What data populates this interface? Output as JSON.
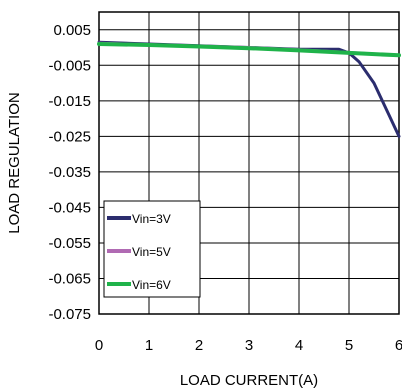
{
  "chart_data": {
    "type": "line",
    "title": "",
    "xlabel": "LOAD CURRENT(A)",
    "ylabel": "LOAD REGULATION",
    "xlim": [
      0,
      6
    ],
    "ylim": [
      -0.075,
      0.01
    ],
    "xticks": [
      0,
      1,
      2,
      3,
      4,
      5,
      6
    ],
    "yticks": [
      0.005,
      -0.005,
      -0.015,
      -0.025,
      -0.035,
      -0.045,
      -0.055,
      -0.065,
      -0.075
    ],
    "xtick_labels": [
      "0",
      "1",
      "2",
      "3",
      "4",
      "5",
      "6"
    ],
    "ytick_labels": [
      "0.005",
      "-0.005",
      "-0.015",
      "-0.025",
      "-0.035",
      "-0.045",
      "-0.055",
      "-0.065",
      "-0.075"
    ],
    "grid": true,
    "legend_position": "bottom-left",
    "series": [
      {
        "name": "Vin=3V",
        "color": "#2b2d6e",
        "x": [
          0,
          1,
          2,
          3,
          4,
          4.8,
          5.0,
          5.2,
          5.5,
          5.8,
          6.0
        ],
        "y": [
          0.0015,
          0.001,
          0.0005,
          0.0,
          -0.0005,
          -0.0005,
          -0.0015,
          -0.004,
          -0.01,
          -0.019,
          -0.025
        ]
      },
      {
        "name": "Vin=5V",
        "color": "#b06ab3",
        "x": [
          0,
          1,
          2,
          3,
          4,
          5,
          6
        ],
        "y": [
          0.0012,
          0.0008,
          0.0004,
          0.0,
          -0.0006,
          -0.0014,
          -0.0022
        ]
      },
      {
        "name": "Vin=6V",
        "color": "#1fb34a",
        "x": [
          0,
          1,
          2,
          3,
          4,
          5,
          6
        ],
        "y": [
          0.001,
          0.0007,
          0.0003,
          -0.0002,
          -0.0008,
          -0.0015,
          -0.0022
        ]
      }
    ]
  }
}
